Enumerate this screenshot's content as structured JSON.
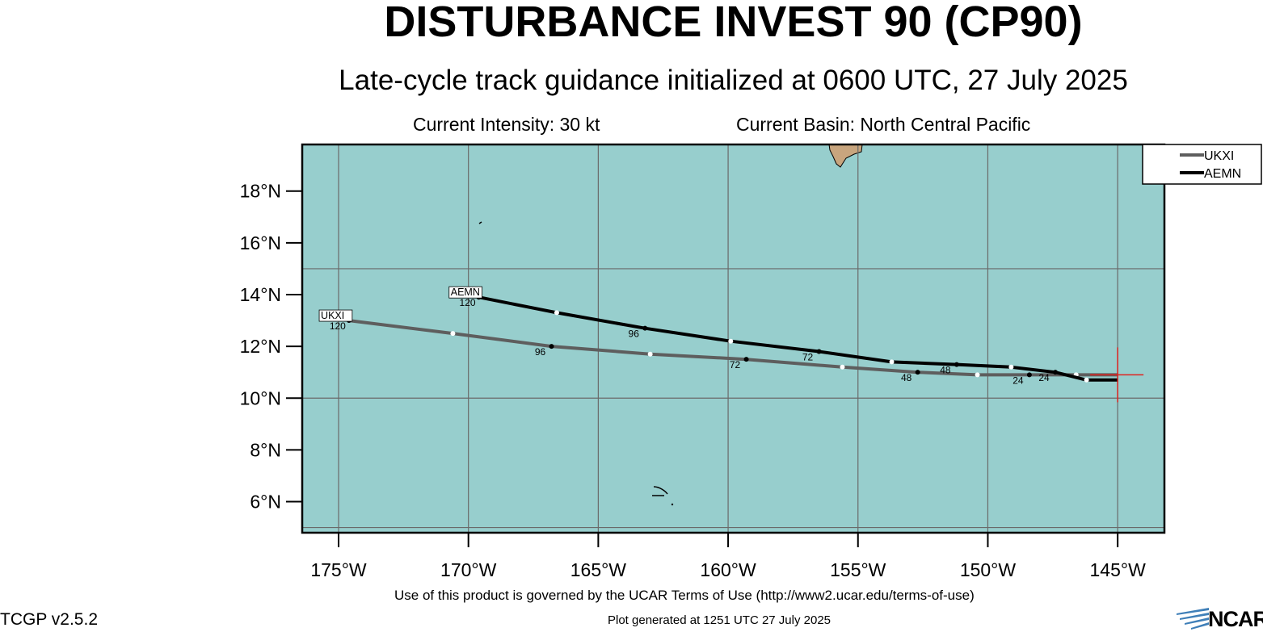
{
  "title": "DISTURBANCE INVEST 90 (CP90)",
  "subtitle": "Late-cycle track guidance initialized at 0600 UTC, 27 July 2025",
  "current_intensity": "Current Intensity: 30 kt",
  "current_basin": "Current Basin: North Central Pacific",
  "footer": {
    "terms": "Use of this product is governed by the UCAR Terms of Use (http://www2.ucar.edu/terms-of-use)",
    "version": "TCGP v2.5.2",
    "generated": "Plot generated at 1251 UTC   27 July 2025",
    "logo": "NCAR"
  },
  "colors": {
    "ocean": "#97cecd",
    "land": "#c8a57e",
    "grid": "#6a6a6a",
    "ukxi": "#5e5e5e",
    "aemn": "#000000",
    "current_position": "#e0221f"
  },
  "chart_data": {
    "type": "map",
    "xlabel": "",
    "ylabel": "",
    "lon_ticks": [
      "175°W",
      "170°W",
      "165°W",
      "160°W",
      "155°W",
      "150°W",
      "145°W"
    ],
    "lon_values": [
      -175,
      -170,
      -165,
      -160,
      -155,
      -150,
      -145
    ],
    "lat_ticks": [
      "6°N",
      "8°N",
      "10°N",
      "12°N",
      "14°N",
      "16°N",
      "18°N"
    ],
    "lat_values": [
      6,
      8,
      10,
      12,
      14,
      16,
      18
    ],
    "lon_range": [
      -176.4,
      -143.2
    ],
    "lat_range": [
      4.8,
      19.8
    ],
    "grid_lons": [
      -175,
      -170,
      -165,
      -160,
      -155,
      -150,
      -145
    ],
    "grid_lats": [
      5,
      10,
      15
    ],
    "current_position": {
      "lon": -145.0,
      "lat": 10.9
    },
    "legend": {
      "position": "top-right",
      "entries": [
        "UKXI",
        "AEMN"
      ]
    },
    "series": [
      {
        "name": "UKXI",
        "end_label": "UKXI",
        "points": [
          {
            "lon": -145.0,
            "lat": 10.9
          },
          {
            "lon": -146.6,
            "lat": 10.9
          },
          {
            "lon": -148.4,
            "lat": 10.9
          },
          {
            "lon": -150.4,
            "lat": 10.9
          },
          {
            "lon": -152.7,
            "lat": 11.0
          },
          {
            "lon": -155.6,
            "lat": 11.2
          },
          {
            "lon": -159.3,
            "lat": 11.5
          },
          {
            "lon": -163.0,
            "lat": 11.7
          },
          {
            "lon": -166.8,
            "lat": 12.0
          },
          {
            "lon": -170.6,
            "lat": 12.5
          },
          {
            "lon": -174.6,
            "lat": 13.0
          }
        ],
        "labeled_hours": [
          {
            "point": 2,
            "text": "24"
          },
          {
            "point": 4,
            "text": "48"
          },
          {
            "point": 6,
            "text": "72"
          },
          {
            "point": 8,
            "text": "96"
          },
          {
            "point": 10,
            "text": "120"
          }
        ]
      },
      {
        "name": "AEMN",
        "end_label": "AEMN",
        "points": [
          {
            "lon": -145.0,
            "lat": 10.7
          },
          {
            "lon": -146.2,
            "lat": 10.7
          },
          {
            "lon": -147.4,
            "lat": 11.0
          },
          {
            "lon": -149.1,
            "lat": 11.2
          },
          {
            "lon": -151.2,
            "lat": 11.3
          },
          {
            "lon": -153.7,
            "lat": 11.4
          },
          {
            "lon": -156.5,
            "lat": 11.8
          },
          {
            "lon": -159.9,
            "lat": 12.2
          },
          {
            "lon": -163.2,
            "lat": 12.7
          },
          {
            "lon": -166.6,
            "lat": 13.3
          },
          {
            "lon": -169.6,
            "lat": 13.9
          }
        ],
        "labeled_hours": [
          {
            "point": 2,
            "text": "24"
          },
          {
            "point": 4,
            "text": "48"
          },
          {
            "point": 6,
            "text": "72"
          },
          {
            "point": 8,
            "text": "96"
          },
          {
            "point": 10,
            "text": "120"
          }
        ]
      }
    ]
  }
}
